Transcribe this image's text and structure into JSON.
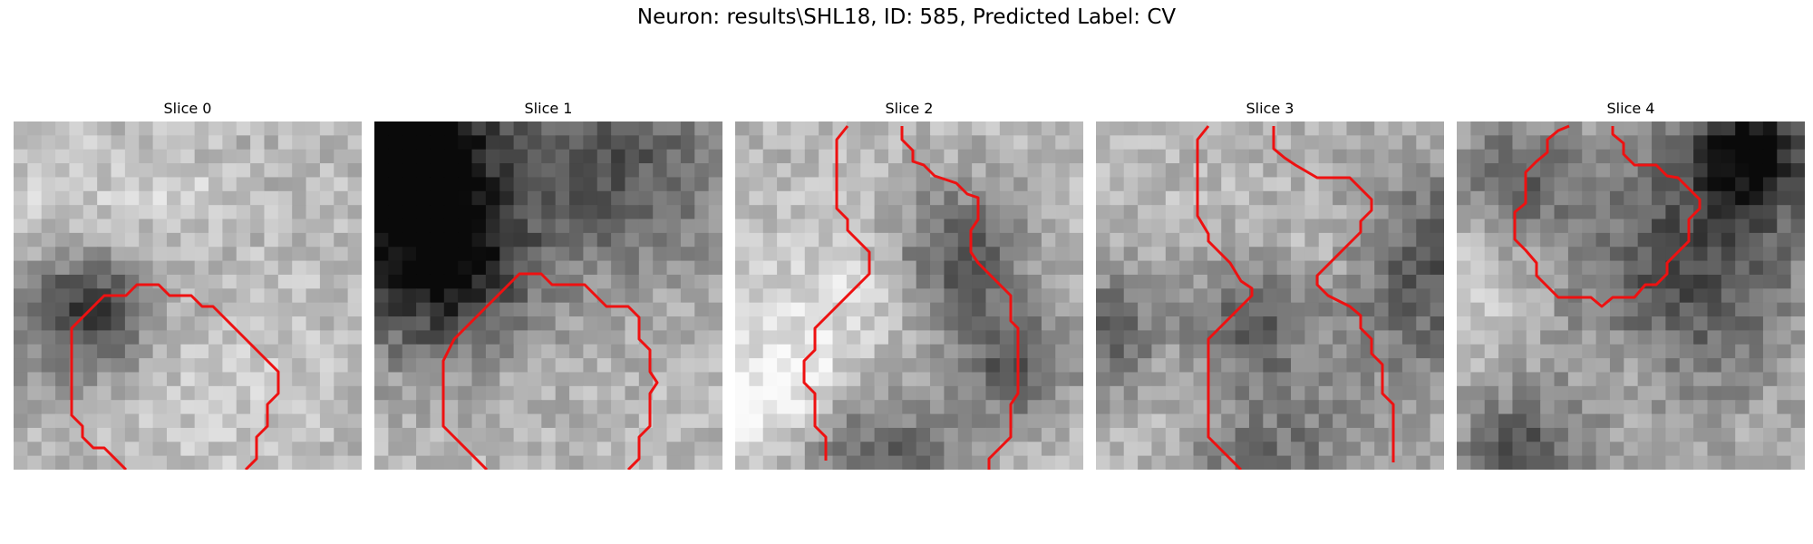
{
  "figure": {
    "title": "Neuron: results\\SHL18, ID: 585, Predicted Label: CV"
  },
  "panels": [
    {
      "title": "Slice 0",
      "contour_color": "#ee1111"
    },
    {
      "title": "Slice 1",
      "contour_color": "#ee1111"
    },
    {
      "title": "Slice 2",
      "contour_color": "#ee1111"
    },
    {
      "title": "Slice 3",
      "contour_color": "#ee1111"
    },
    {
      "title": "Slice 4",
      "contour_color": "#ee1111"
    }
  ]
}
